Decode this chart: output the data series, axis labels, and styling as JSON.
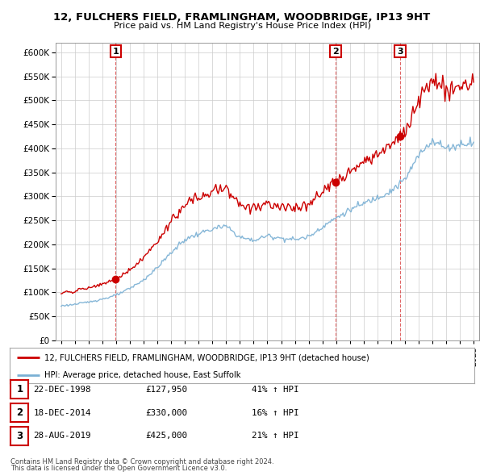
{
  "title": "12, FULCHERS FIELD, FRAMLINGHAM, WOODBRIDGE, IP13 9HT",
  "subtitle": "Price paid vs. HM Land Registry's House Price Index (HPI)",
  "ylim": [
    0,
    620000
  ],
  "yticks": [
    0,
    50000,
    100000,
    150000,
    200000,
    250000,
    300000,
    350000,
    400000,
    450000,
    500000,
    550000,
    600000
  ],
  "xlim_start": 1994.6,
  "xlim_end": 2025.4,
  "sale_dates_num": [
    1998.97,
    2014.96,
    2019.65
  ],
  "sale_prices": [
    127950,
    330000,
    425000
  ],
  "sale_labels": [
    "1",
    "2",
    "3"
  ],
  "legend_property": "12, FULCHERS FIELD, FRAMLINGHAM, WOODBRIDGE, IP13 9HT (detached house)",
  "legend_hpi": "HPI: Average price, detached house, East Suffolk",
  "table_data": [
    {
      "num": "1",
      "date": "22-DEC-1998",
      "price": "£127,950",
      "change": "41% ↑ HPI"
    },
    {
      "num": "2",
      "date": "18-DEC-2014",
      "price": "£330,000",
      "change": "16% ↑ HPI"
    },
    {
      "num": "3",
      "date": "28-AUG-2019",
      "price": "£425,000",
      "change": "21% ↑ HPI"
    }
  ],
  "footnote1": "Contains HM Land Registry data © Crown copyright and database right 2024.",
  "footnote2": "This data is licensed under the Open Government Licence v3.0.",
  "property_line_color": "#cc0000",
  "hpi_line_color": "#7ab0d4",
  "sale_marker_color": "#cc0000",
  "background_color": "#ffffff",
  "grid_color": "#cccccc",
  "hpi_anchors_years": [
    1995,
    1996,
    1997,
    1998,
    1999,
    2000,
    2001,
    2002,
    2003,
    2004,
    2005,
    2006,
    2007,
    2008,
    2009,
    2010,
    2011,
    2012,
    2013,
    2014,
    2015,
    2016,
    2017,
    2018,
    2019,
    2020,
    2021,
    2022,
    2023,
    2024,
    2025
  ],
  "hpi_anchors_vals": [
    72000,
    75000,
    80000,
    86000,
    94000,
    108000,
    126000,
    152000,
    183000,
    210000,
    222000,
    232000,
    238000,
    215000,
    208000,
    218000,
    213000,
    210000,
    216000,
    237000,
    255000,
    272000,
    285000,
    298000,
    312000,
    335000,
    385000,
    418000,
    400000,
    408000,
    415000
  ]
}
